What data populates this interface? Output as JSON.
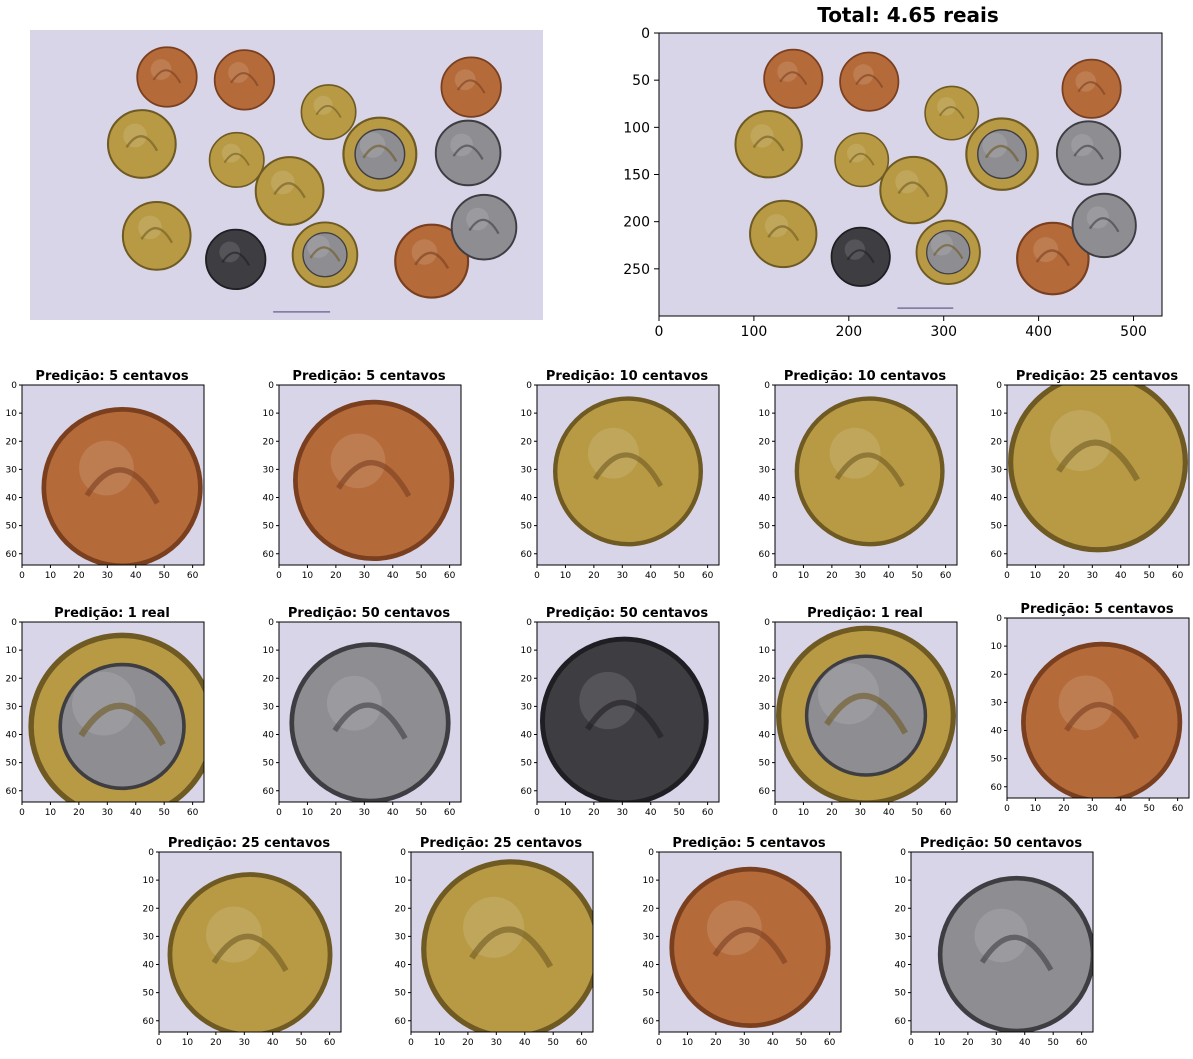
{
  "colors": {
    "background": "#d9d5e9",
    "copper": "#b56a3a",
    "copper_dark": "#7a3f1f",
    "brass": "#b89a45",
    "brass_dark": "#6e5a22",
    "silver": "#8e8d92",
    "silver_dark": "#3e3d42",
    "scale_bar": "#7a6f9e"
  },
  "original_photo": {
    "coins": [
      {
        "value": "5c",
        "metal": "copper"
      },
      {
        "value": "5c",
        "metal": "copper"
      },
      {
        "value": "10c",
        "metal": "brass"
      },
      {
        "value": "5c",
        "metal": "copper"
      },
      {
        "value": "25c",
        "metal": "brass"
      },
      {
        "value": "10c",
        "metal": "brass"
      },
      {
        "value": "1r",
        "metal": "bimetal"
      },
      {
        "value": "50c",
        "metal": "silver"
      },
      {
        "value": "25c",
        "metal": "brass"
      },
      {
        "value": "25c",
        "metal": "brass"
      },
      {
        "value": "5c",
        "metal": "copper"
      },
      {
        "value": "50c",
        "metal": "dark"
      },
      {
        "value": "1r",
        "metal": "bimetal"
      },
      {
        "value": "50c",
        "metal": "silver"
      }
    ]
  },
  "annotated_plot": {
    "title": "Total: 4.65 reais",
    "x_ticks": [
      "0",
      "100",
      "200",
      "300",
      "400",
      "500"
    ],
    "y_ticks": [
      "0",
      "50",
      "100",
      "150",
      "200",
      "250"
    ]
  },
  "crop_axis": {
    "x_ticks": [
      "0",
      "10",
      "20",
      "30",
      "40",
      "50",
      "60"
    ],
    "y_ticks": [
      "0",
      "10",
      "20",
      "30",
      "40",
      "50",
      "60"
    ]
  },
  "predictions": [
    {
      "label": "Predição: 5 centavos",
      "metal": "copper"
    },
    {
      "label": "Predição: 5 centavos",
      "metal": "copper"
    },
    {
      "label": "Predição: 10 centavos",
      "metal": "brass"
    },
    {
      "label": "Predição: 10 centavos",
      "metal": "brass"
    },
    {
      "label": "Predição: 25 centavos",
      "metal": "brass"
    },
    {
      "label": "Predição: 1 real",
      "metal": "bimetal"
    },
    {
      "label": "Predição: 50 centavos",
      "metal": "silver"
    },
    {
      "label": "Predição: 50 centavos",
      "metal": "dark"
    },
    {
      "label": "Predição: 1 real",
      "metal": "bimetal"
    },
    {
      "label": "Predição: 5 centavos",
      "metal": "copper"
    },
    {
      "label": "Predição: 25 centavos",
      "metal": "brass"
    },
    {
      "label": "Predição: 25 centavos",
      "metal": "brass"
    },
    {
      "label": "Predição: 5 centavos",
      "metal": "copper"
    },
    {
      "label": "Predição: 50 centavos",
      "metal": "silver"
    }
  ]
}
